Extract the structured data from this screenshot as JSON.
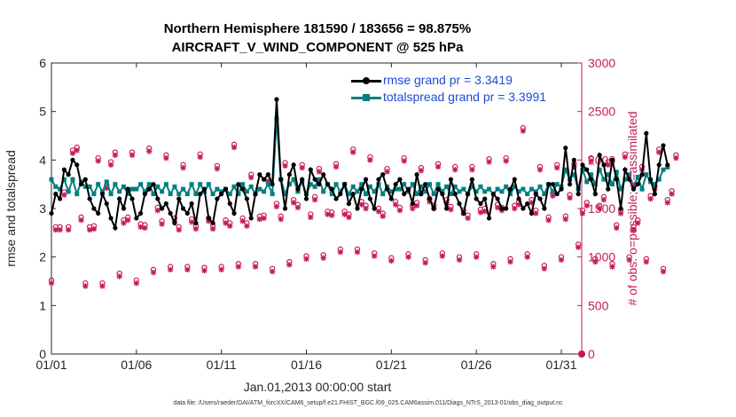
{
  "title_line1": "Northern Hemisphere 181590 / 183656 = 98.875%",
  "title_line2": "AIRCRAFT_V_WIND_COMPONENT @ 525 hPa",
  "footer": "data file: /Users/raeder/DAI/ATM_forcXX/CAM6_setup/f.e21.FHIST_BGC.f09_025.CAM6assim.011/Diags_NTrS_2013-01/obs_diag_output.nc",
  "colors": {
    "rmse": "#000000",
    "spread": "#008080",
    "obs": "#c51b5a",
    "legend_text": "#1f49d6"
  },
  "chart_data": {
    "type": "line",
    "xlabel": "Jan.01,2013 00:00:00 start",
    "ylabel_left": "rmse and totalspread",
    "ylabel_right": "# of obs: o=possible; ×=assimilated",
    "x_start_day": 1,
    "x_end_day": 32.2,
    "xtick_days": [
      1,
      6,
      11,
      16,
      21,
      26,
      31
    ],
    "xtick_labels": [
      "01/01",
      "01/06",
      "01/11",
      "01/16",
      "01/21",
      "01/26",
      "01/31"
    ],
    "ylim_left": [
      0,
      6
    ],
    "yticks_left": [
      0,
      1,
      2,
      3,
      4,
      5,
      6
    ],
    "ylim_right": [
      0,
      3000
    ],
    "yticks_right": [
      0,
      500,
      1000,
      1500,
      2000,
      2500,
      3000
    ],
    "step_days": 0.25,
    "legend": [
      "rmse grand pr = 3.3419",
      "totalspread grand pr = 3.3991"
    ],
    "series": [
      {
        "name": "rmse",
        "values": [
          2.9,
          3.3,
          3.2,
          3.8,
          3.7,
          4.0,
          3.9,
          3.5,
          3.6,
          3.2,
          3.0,
          2.9,
          3.3,
          3.1,
          2.8,
          2.6,
          3.2,
          3.0,
          3.4,
          3.2,
          2.8,
          2.9,
          3.3,
          3.4,
          3.5,
          3.2,
          3.0,
          3.1,
          2.9,
          2.7,
          3.2,
          3.0,
          2.9,
          3.1,
          2.7,
          3.3,
          3.4,
          2.8,
          2.7,
          3.2,
          3.3,
          3.4,
          3.1,
          2.9,
          3.5,
          3.4,
          3.2,
          2.8,
          3.3,
          3.7,
          3.6,
          3.7,
          3.5,
          5.25,
          3.6,
          3.0,
          3.7,
          3.9,
          3.4,
          3.6,
          3.2,
          3.8,
          3.6,
          3.5,
          3.7,
          3.5,
          3.4,
          3.2,
          3.3,
          3.5,
          3.1,
          3.3,
          3.0,
          3.4,
          3.6,
          3.2,
          3.0,
          3.6,
          3.7,
          3.4,
          3.2,
          3.5,
          3.6,
          3.3,
          3.4,
          3.1,
          3.7,
          3.3,
          3.5,
          3.2,
          3.0,
          3.4,
          3.3,
          3.0,
          3.6,
          3.3,
          3.1,
          2.9,
          3.3,
          3.6,
          3.2,
          3.1,
          3.2,
          2.8,
          3.3,
          3.2,
          3.0,
          3.0,
          3.4,
          3.6,
          3.2,
          3.0,
          3.1,
          2.9,
          3.3,
          3.2,
          3.0,
          3.5,
          3.5,
          3.3,
          3.4,
          4.25,
          3.5,
          4.0,
          3.3,
          3.9,
          3.8,
          3.6,
          3.3,
          4.1,
          3.9,
          3.4,
          4.0,
          3.6,
          3.0,
          3.8,
          3.6,
          3.4,
          3.5,
          3.7,
          4.55,
          3.6,
          3.3,
          3.9,
          4.3,
          3.9
        ]
      },
      {
        "name": "totalspread",
        "values": [
          3.6,
          3.45,
          3.4,
          3.6,
          3.35,
          3.6,
          3.3,
          3.55,
          3.45,
          3.45,
          3.3,
          3.5,
          3.35,
          3.55,
          3.3,
          3.5,
          3.35,
          3.45,
          3.3,
          3.4,
          3.4,
          3.5,
          3.35,
          3.5,
          3.3,
          3.45,
          3.35,
          3.5,
          3.3,
          3.45,
          3.3,
          3.4,
          3.3,
          3.5,
          3.3,
          3.5,
          3.35,
          3.5,
          3.3,
          3.4,
          3.35,
          3.4,
          3.3,
          3.45,
          3.3,
          3.5,
          3.35,
          3.45,
          3.3,
          3.4,
          3.35,
          3.5,
          3.3,
          4.85,
          3.6,
          3.3,
          3.5,
          3.6,
          3.35,
          3.55,
          3.3,
          3.5,
          3.45,
          3.6,
          3.35,
          3.5,
          3.3,
          3.5,
          3.35,
          3.5,
          3.3,
          3.45,
          3.35,
          3.5,
          3.3,
          3.45,
          3.35,
          3.5,
          3.3,
          3.45,
          3.35,
          3.4,
          3.4,
          3.5,
          3.35,
          3.5,
          3.3,
          3.45,
          3.35,
          3.5,
          3.3,
          3.5,
          3.35,
          3.45,
          3.3,
          3.45,
          3.35,
          3.4,
          3.3,
          3.45,
          3.35,
          3.45,
          3.35,
          3.4,
          3.3,
          3.4,
          3.35,
          3.45,
          3.3,
          3.45,
          3.35,
          3.4,
          3.3,
          3.4,
          3.35,
          3.45,
          3.3,
          3.5,
          3.35,
          3.5,
          3.45,
          3.8,
          3.6,
          3.7,
          3.4,
          3.8,
          3.55,
          3.7,
          3.5,
          3.8,
          3.6,
          3.7,
          3.5,
          3.75,
          3.4,
          3.6,
          3.7,
          3.45,
          3.65,
          3.4,
          3.7,
          3.55,
          3.5,
          3.6,
          3.8,
          3.85
        ]
      }
    ],
    "obs_counts": [
      730,
      1280,
      1280,
      1640,
      1280,
      2070,
      2100,
      1380,
      700,
      1280,
      1290,
      1990,
      700,
      1710,
      1950,
      2050,
      800,
      1350,
      1380,
      2050,
      730,
      1310,
      1300,
      2090,
      840,
      1480,
      1340,
      2020,
      870,
      1370,
      1280,
      1920,
      870,
      1360,
      1290,
      2030,
      860,
      1370,
      1290,
      1910,
      870,
      1350,
      1320,
      2130,
      900,
      1370,
      1320,
      1820,
      900,
      1390,
      1400,
      1780,
      850,
      1520,
      1390,
      1940,
      920,
      1560,
      1510,
      1920,
      980,
      1410,
      1590,
      1880,
      990,
      1440,
      1430,
      1930,
      1050,
      1440,
      1410,
      2080,
      1050,
      1540,
      1500,
      2000,
      1010,
      1470,
      1420,
      1880,
      960,
      1540,
      1480,
      1990,
      1000,
      1500,
      1530,
      1890,
      940,
      1570,
      1500,
      1930,
      1010,
      1560,
      1490,
      1900,
      970,
      1450,
      1400,
      1900,
      1000,
      1460,
      1470,
      1980,
      900,
      1510,
      1480,
      1990,
      950,
      1500,
      1540,
      2300,
      1000,
      1560,
      1450,
      1900,
      880,
      1380,
      1630,
      1920,
      970,
      1390,
      1610,
      1930,
      1100,
      1450,
      1530,
      1990,
      950,
      1500,
      1590,
      1950,
      900,
      1300,
      1450,
      2030,
      970,
      1280,
      1350,
      1900,
      950,
      1600,
      1700,
      2080,
      850,
      1560,
      1650,
      2020
    ]
  },
  "obs_possible_offset": 30,
  "obs_assim_offset": 0
}
